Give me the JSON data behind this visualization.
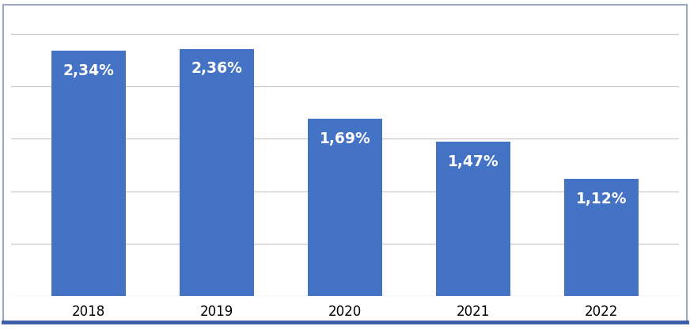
{
  "categories": [
    "2018",
    "2019",
    "2020",
    "2021",
    "2022"
  ],
  "values": [
    2.34,
    2.36,
    1.69,
    1.47,
    1.12
  ],
  "labels": [
    "2,34%",
    "2,36%",
    "1,69%",
    "1,47%",
    "1,12%"
  ],
  "bar_color": "#4472C4",
  "label_color": "#FFFFFF",
  "label_fontsize": 13.5,
  "tick_fontsize": 12,
  "background_color": "#FFFFFF",
  "plot_bg_color": "#FFFFFF",
  "grid_color": "#C8C8C8",
  "ylim": [
    0,
    2.72
  ],
  "bar_width": 0.58,
  "outer_border_color": "#3B5CA8",
  "outer_border_top_color": "#B0B8D0"
}
